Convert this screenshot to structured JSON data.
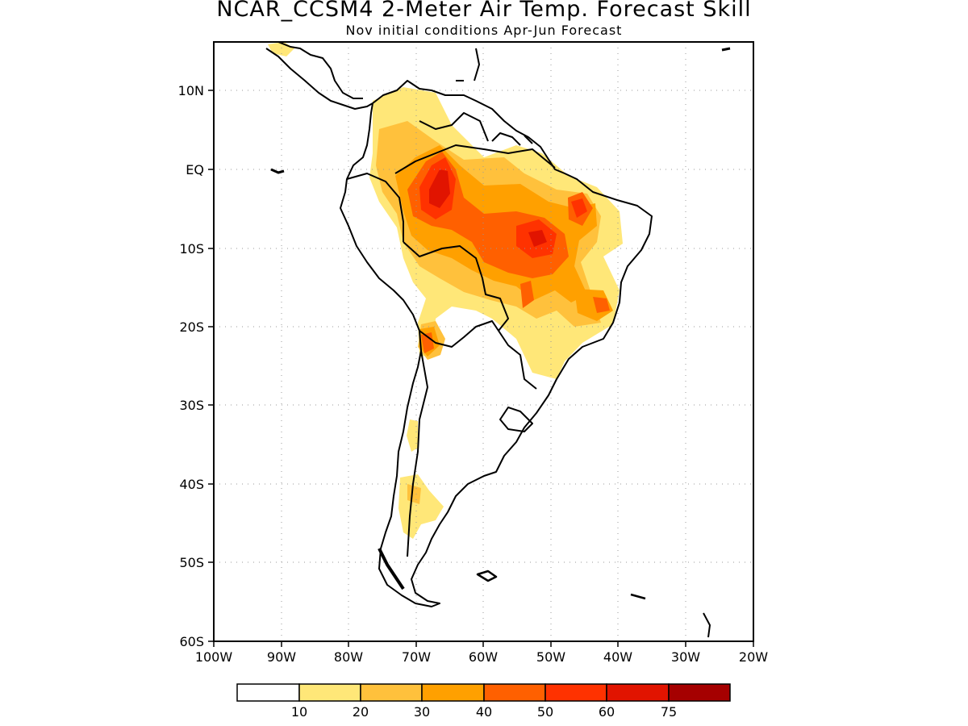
{
  "title": "NCAR_CCSM4 2-Meter Air Temp. Forecast Skill",
  "subtitle": "Nov initial conditions  Apr-Jun Forecast",
  "map": {
    "lon_range": [
      -100,
      -20
    ],
    "lat_range": [
      -60,
      16
    ],
    "lat_ticks": [
      {
        "value": 10,
        "label": "10N"
      },
      {
        "value": 0,
        "label": "EQ"
      },
      {
        "value": -10,
        "label": "10S"
      },
      {
        "value": -20,
        "label": "20S"
      },
      {
        "value": -30,
        "label": "30S"
      },
      {
        "value": -40,
        "label": "40S"
      },
      {
        "value": -50,
        "label": "50S"
      },
      {
        "value": -60,
        "label": "60S"
      }
    ],
    "lon_ticks": [
      {
        "value": -100,
        "label": "100W"
      },
      {
        "value": -90,
        "label": "90W"
      },
      {
        "value": -80,
        "label": "80W"
      },
      {
        "value": -70,
        "label": "70W"
      },
      {
        "value": -60,
        "label": "60W"
      },
      {
        "value": -50,
        "label": "50W"
      },
      {
        "value": -40,
        "label": "40W"
      },
      {
        "value": -30,
        "label": "30W"
      },
      {
        "value": -20,
        "label": "20W"
      }
    ],
    "gridlines": "dotted"
  },
  "legend": {
    "labels": [
      "10",
      "20",
      "30",
      "40",
      "50",
      "60",
      "75"
    ],
    "colors": [
      "#ffffff",
      "#ffe778",
      "#ffc13c",
      "#ffa000",
      "#ff6000",
      "#ff3200",
      "#e11400",
      "#a50000"
    ]
  }
}
